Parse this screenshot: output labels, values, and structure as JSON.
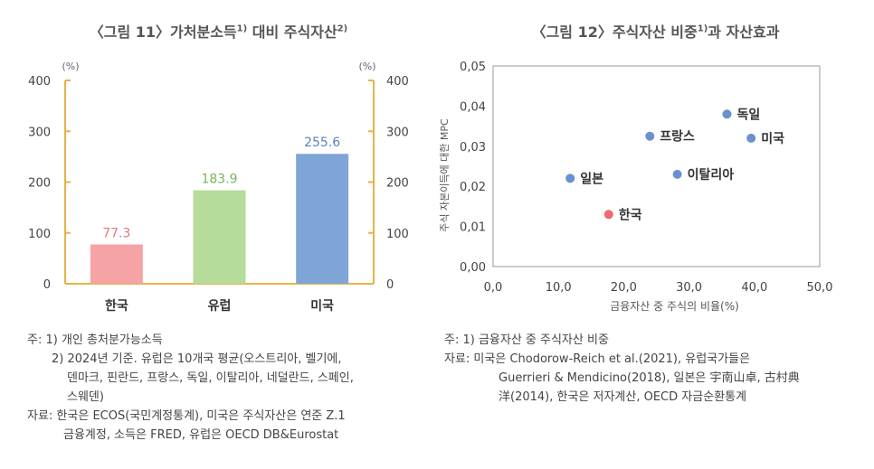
{
  "left": {
    "title": "〈그림 11〉가처분소득",
    "title_sup1": "1)",
    "title_mid": " 대비 주식자산",
    "title_sup2": "2)",
    "unit_left": "(%)",
    "unit_right": "(%)",
    "notes": [
      "주: 1) 개인 총처분가능소득",
      "2) 2024년 기준. 유럽은 10개국 평균(오스트리아, 벨기에,",
      "덴마크, 핀란드, 프랑스, 독일, 이탈리아, 네덜란드, 스페인,",
      "스웨덴)",
      "자료: 한국은 ECOS(국민계정통계), 미국은 주식자산은 연준 Z.1",
      "금융계정, 소득은 FRED, 유럽은 OECD DB&Eurostat"
    ]
  },
  "right": {
    "title": "〈그림 12〉주식자산 비중",
    "title_sup": "1)",
    "title_rest": "과 자산효과",
    "notes": [
      "주: 1) 금융자산 중 주식자산 비중",
      "자료: 미국은 Chodorow-Reich et al.(2021), 유럽국가들은",
      "Guerrieri & Mendicino(2018), 일본은 宇南山卓, 古村典",
      "洋(2014), 한국은 저자계산, OECD 자금순환통계"
    ]
  },
  "chart_data": [
    {
      "type": "bar",
      "categories": [
        "한국",
        "유럽",
        "미국"
      ],
      "values": [
        77.3,
        183.9,
        255.6
      ],
      "value_labels": [
        "77.3",
        "183.9",
        "255.6"
      ],
      "colors": [
        "#f6a3a5",
        "#b5dc9b",
        "#7fa5d6"
      ],
      "label_colors": [
        "#e0797d",
        "#79b45b",
        "#5b84bd"
      ],
      "ylim": [
        0,
        400
      ],
      "yticks": [
        "0",
        "100",
        "200",
        "300",
        "400"
      ],
      "yticks_right": [
        "0",
        "100",
        "200",
        "300",
        "400"
      ],
      "ylabel": "(%)",
      "grid": false
    },
    {
      "type": "scatter",
      "xlabel": "금융자산 중 주식의 비율(%)",
      "ylabel": "주식 자본이득에 대한 MPC",
      "xlim": [
        0,
        50
      ],
      "ylim": [
        0,
        0.05
      ],
      "xticks": [
        "0,0",
        "10,0",
        "20,0",
        "30,0",
        "40,0",
        "50,0"
      ],
      "yticks": [
        "0,00",
        "0,01",
        "0,02",
        "0,03",
        "0,04",
        "0,05"
      ],
      "points": [
        {
          "label": "독일",
          "x": 35.8,
          "y": 0.038,
          "color": "#6a91cf"
        },
        {
          "label": "프랑스",
          "x": 24.0,
          "y": 0.0325,
          "color": "#6a91cf"
        },
        {
          "label": "미국",
          "x": 39.5,
          "y": 0.032,
          "color": "#6a91cf"
        },
        {
          "label": "이탈리아",
          "x": 28.2,
          "y": 0.023,
          "color": "#6a91cf"
        },
        {
          "label": "일본",
          "x": 11.8,
          "y": 0.022,
          "color": "#6a91cf"
        },
        {
          "label": "한국",
          "x": 17.7,
          "y": 0.013,
          "color": "#ef6a6a"
        }
      ],
      "grid": false
    }
  ]
}
